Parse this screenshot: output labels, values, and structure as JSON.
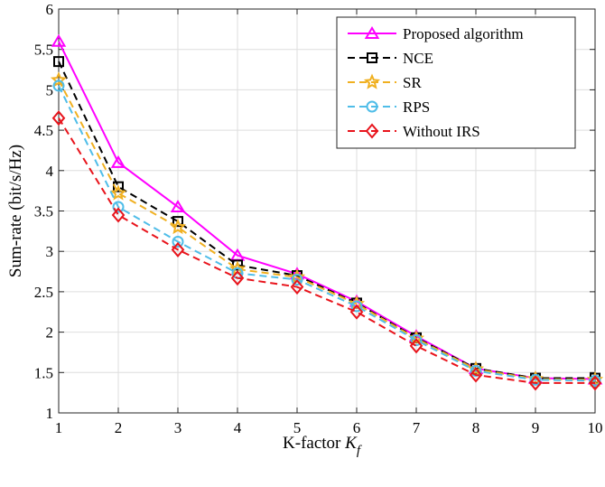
{
  "chart_data": {
    "type": "line",
    "xlabel": "K-factor",
    "xlabel_symbol": "K",
    "xlabel_subscript": "f",
    "ylabel": "Sum-rate (bit/s/Hz)",
    "xlim": [
      1,
      10
    ],
    "ylim": [
      1,
      6
    ],
    "x_ticks": [
      1,
      2,
      3,
      4,
      5,
      6,
      7,
      8,
      9,
      10
    ],
    "y_ticks": [
      1,
      1.5,
      2,
      2.5,
      3,
      3.5,
      4,
      4.5,
      5,
      5.5,
      6
    ],
    "y_tick_labels": [
      "1",
      "1.5",
      "2",
      "2.5",
      "3",
      "3.5",
      "4",
      "4.5",
      "5",
      "5.5",
      "6"
    ],
    "grid": true,
    "legend_position": "top-right",
    "x": [
      1,
      2,
      3,
      4,
      5,
      6,
      7,
      8,
      9,
      10
    ],
    "series": [
      {
        "name": "Proposed algorithm",
        "color": "#ff00ff",
        "dash": "solid",
        "marker": "triangle",
        "values": [
          5.6,
          4.1,
          3.55,
          2.95,
          2.72,
          2.38,
          1.95,
          1.55,
          1.43,
          1.42
        ]
      },
      {
        "name": "NCE",
        "color": "#000000",
        "dash": "dashed",
        "marker": "square",
        "values": [
          5.35,
          3.8,
          3.37,
          2.83,
          2.7,
          2.36,
          1.93,
          1.55,
          1.43,
          1.43
        ]
      },
      {
        "name": "SR",
        "color": "#f0b020",
        "dash": "dashed",
        "marker": "star",
        "values": [
          5.12,
          3.72,
          3.3,
          2.78,
          2.68,
          2.35,
          1.92,
          1.54,
          1.42,
          1.41
        ]
      },
      {
        "name": "RPS",
        "color": "#4fbde8",
        "dash": "dashed",
        "marker": "circle",
        "values": [
          5.05,
          3.55,
          3.12,
          2.73,
          2.65,
          2.32,
          1.9,
          1.52,
          1.41,
          1.4
        ]
      },
      {
        "name": "Without IRS",
        "color": "#e8141c",
        "dash": "dashed",
        "marker": "diamond",
        "values": [
          4.65,
          3.45,
          3.02,
          2.67,
          2.56,
          2.25,
          1.83,
          1.47,
          1.37,
          1.37
        ]
      }
    ]
  }
}
